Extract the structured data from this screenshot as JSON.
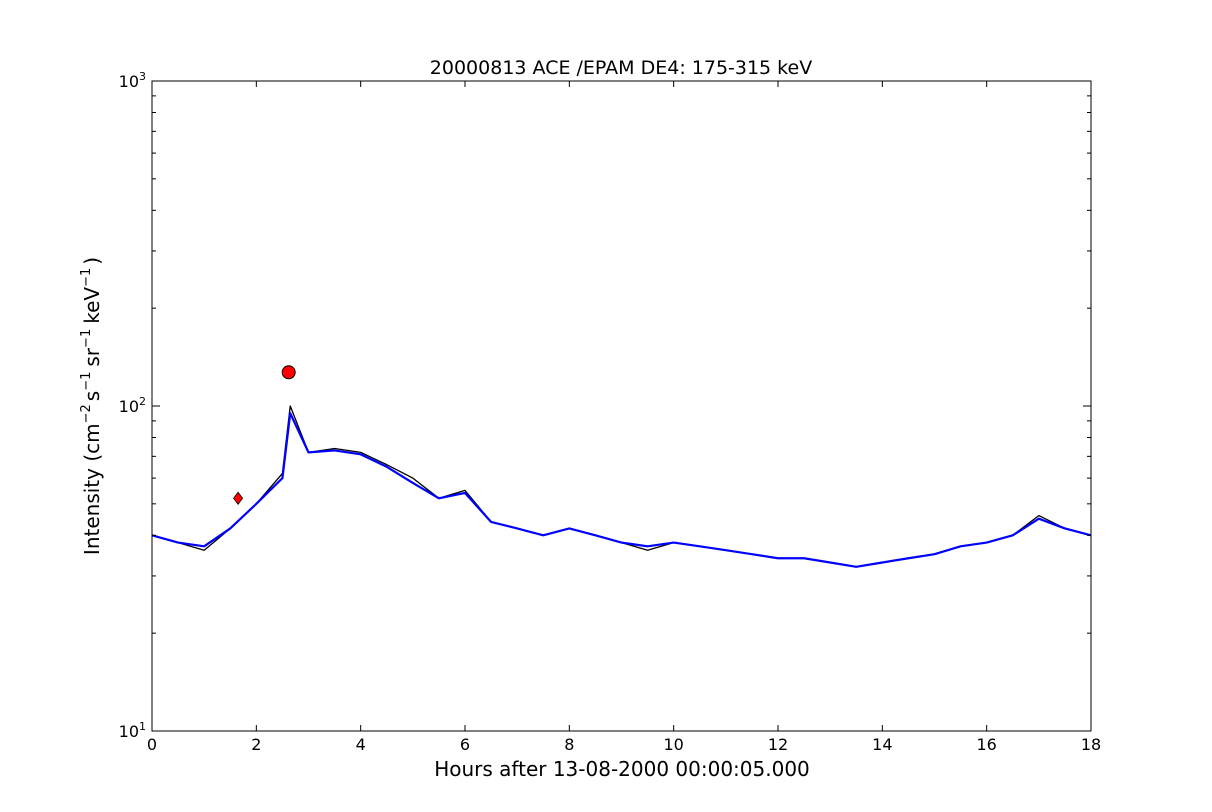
{
  "chart_data": {
    "type": "line",
    "title": "20000813 ACE /EPAM DE4: 175-315 keV",
    "xlabel": "Hours after 13-08-2000 00:00:05.000",
    "ylabel": "Intensity (cm",
    "ylabel_parts": {
      "base": "Intensity (cm",
      "sup1": "−2",
      "s": "s",
      "sup2": "−1",
      "sr": "sr",
      "sup3": "−1",
      "kev": "keV",
      "sup4": "−1",
      "close": ")"
    },
    "xlim": [
      0,
      18
    ],
    "ylim": [
      10,
      1000
    ],
    "yscale": "log",
    "x_ticks": [
      "0",
      "2",
      "4",
      "6",
      "8",
      "10",
      "12",
      "14",
      "16",
      "18"
    ],
    "y_ticks": [
      {
        "base": "10",
        "exp": "1"
      },
      {
        "base": "10",
        "exp": "2"
      },
      {
        "base": "10",
        "exp": "3"
      }
    ],
    "grid": false,
    "series": [
      {
        "color": "#000000",
        "x": [
          0,
          0.5,
          1.0,
          1.5,
          2.0,
          2.5,
          2.65,
          3.0,
          3.5,
          4.0,
          4.5,
          5.0,
          5.5,
          6.0,
          6.5,
          7.0,
          7.5,
          8.0,
          8.5,
          9.0,
          9.5,
          10.0,
          10.5,
          11.0,
          11.5,
          12.0,
          12.5,
          13.0,
          13.5,
          14.0,
          14.5,
          15.0,
          15.5,
          16.0,
          16.5,
          17.0,
          17.5,
          18.0
        ],
        "y": [
          40,
          38,
          36,
          42,
          50,
          62,
          100,
          72,
          74,
          72,
          66,
          60,
          52,
          55,
          44,
          42,
          40,
          42,
          40,
          38,
          36,
          38,
          37,
          36,
          35,
          34,
          34,
          33,
          32,
          33,
          34,
          35,
          37,
          38,
          40,
          46,
          42,
          40
        ]
      },
      {
        "color": "#0000ff",
        "x": [
          0,
          0.5,
          1.0,
          1.5,
          2.0,
          2.5,
          2.65,
          3.0,
          3.5,
          4.0,
          4.5,
          5.0,
          5.5,
          6.0,
          6.5,
          7.0,
          7.5,
          8.0,
          8.5,
          9.0,
          9.5,
          10.0,
          10.5,
          11.0,
          11.5,
          12.0,
          12.5,
          13.0,
          13.5,
          14.0,
          14.5,
          15.0,
          15.5,
          16.0,
          16.5,
          17.0,
          17.5,
          18.0
        ],
        "y": [
          40,
          38,
          37,
          42,
          50,
          60,
          95,
          72,
          73,
          71,
          65,
          58,
          52,
          54,
          44,
          42,
          40,
          42,
          40,
          38,
          37,
          38,
          37,
          36,
          35,
          34,
          34,
          33,
          32,
          33,
          34,
          35,
          37,
          38,
          40,
          45,
          42,
          40
        ]
      }
    ],
    "markers": [
      {
        "x": 1.65,
        "y": 52,
        "shape": "diamond",
        "color": "#ff0000"
      },
      {
        "x": 2.62,
        "y": 127,
        "shape": "circle",
        "color": "#ff0000"
      }
    ]
  }
}
